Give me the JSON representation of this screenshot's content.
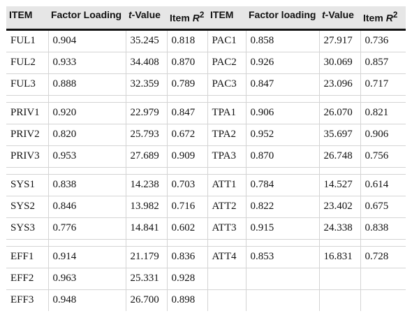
{
  "headers": [
    {
      "pre": "",
      "main": "ITEM",
      "em": "",
      "sup": ""
    },
    {
      "pre": "",
      "main": "Factor Loading",
      "em": "",
      "sup": ""
    },
    {
      "pre": "t",
      "main": "-Value",
      "em": "",
      "sup": ""
    },
    {
      "pre": "",
      "main": "Item ",
      "em": "R",
      "sup": "2"
    },
    {
      "pre": "",
      "main": "ITEM",
      "em": "",
      "sup": ""
    },
    {
      "pre": "",
      "main": "Factor loading",
      "em": "",
      "sup": ""
    },
    {
      "pre": "t",
      "main": "-Value",
      "em": "",
      "sup": ""
    },
    {
      "pre": "",
      "main": "Item ",
      "em": "R",
      "sup": "2"
    }
  ],
  "groups": [
    [
      [
        "FUL1",
        "0.904",
        "35.245",
        "0.818",
        "PAC1",
        "0.858",
        "27.917",
        "0.736"
      ],
      [
        "FUL2",
        "0.933",
        "34.408",
        "0.870",
        "PAC2",
        "0.926",
        "30.069",
        "0.857"
      ],
      [
        "FUL3",
        "0.888",
        "32.359",
        "0.789",
        "PAC3",
        "0.847",
        "23.096",
        "0.717"
      ]
    ],
    [
      [
        "PRIV1",
        "0.920",
        "22.979",
        "0.847",
        "TPA1",
        "0.906",
        "26.070",
        "0.821"
      ],
      [
        "PRIV2",
        "0.820",
        "25.793",
        "0.672",
        "TPA2",
        "0.952",
        "35.697",
        "0.906"
      ],
      [
        "PRIV3",
        "0.953",
        "27.689",
        "0.909",
        "TPA3",
        "0.870",
        "26.748",
        "0.756"
      ]
    ],
    [
      [
        "SYS1",
        "0.838",
        "14.238",
        "0.703",
        "ATT1",
        "0.784",
        "14.527",
        "0.614"
      ],
      [
        "SYS2",
        "0.846",
        "13.982",
        "0.716",
        "ATT2",
        "0.822",
        "23.402",
        "0.675"
      ],
      [
        "SYS3",
        "0.776",
        "14.841",
        "0.602",
        "ATT3",
        "0.915",
        "24.338",
        "0.838"
      ]
    ],
    [
      [
        "EFF1",
        "0.914",
        "21.179",
        "0.836",
        "ATT4",
        "0.853",
        "16.831",
        "0.728"
      ],
      [
        "EFF2",
        "0.963",
        "25.331",
        "0.928",
        "",
        "",
        "",
        ""
      ],
      [
        "EFF3",
        "0.948",
        "26.700",
        "0.898",
        "",
        "",
        "",
        ""
      ]
    ]
  ]
}
